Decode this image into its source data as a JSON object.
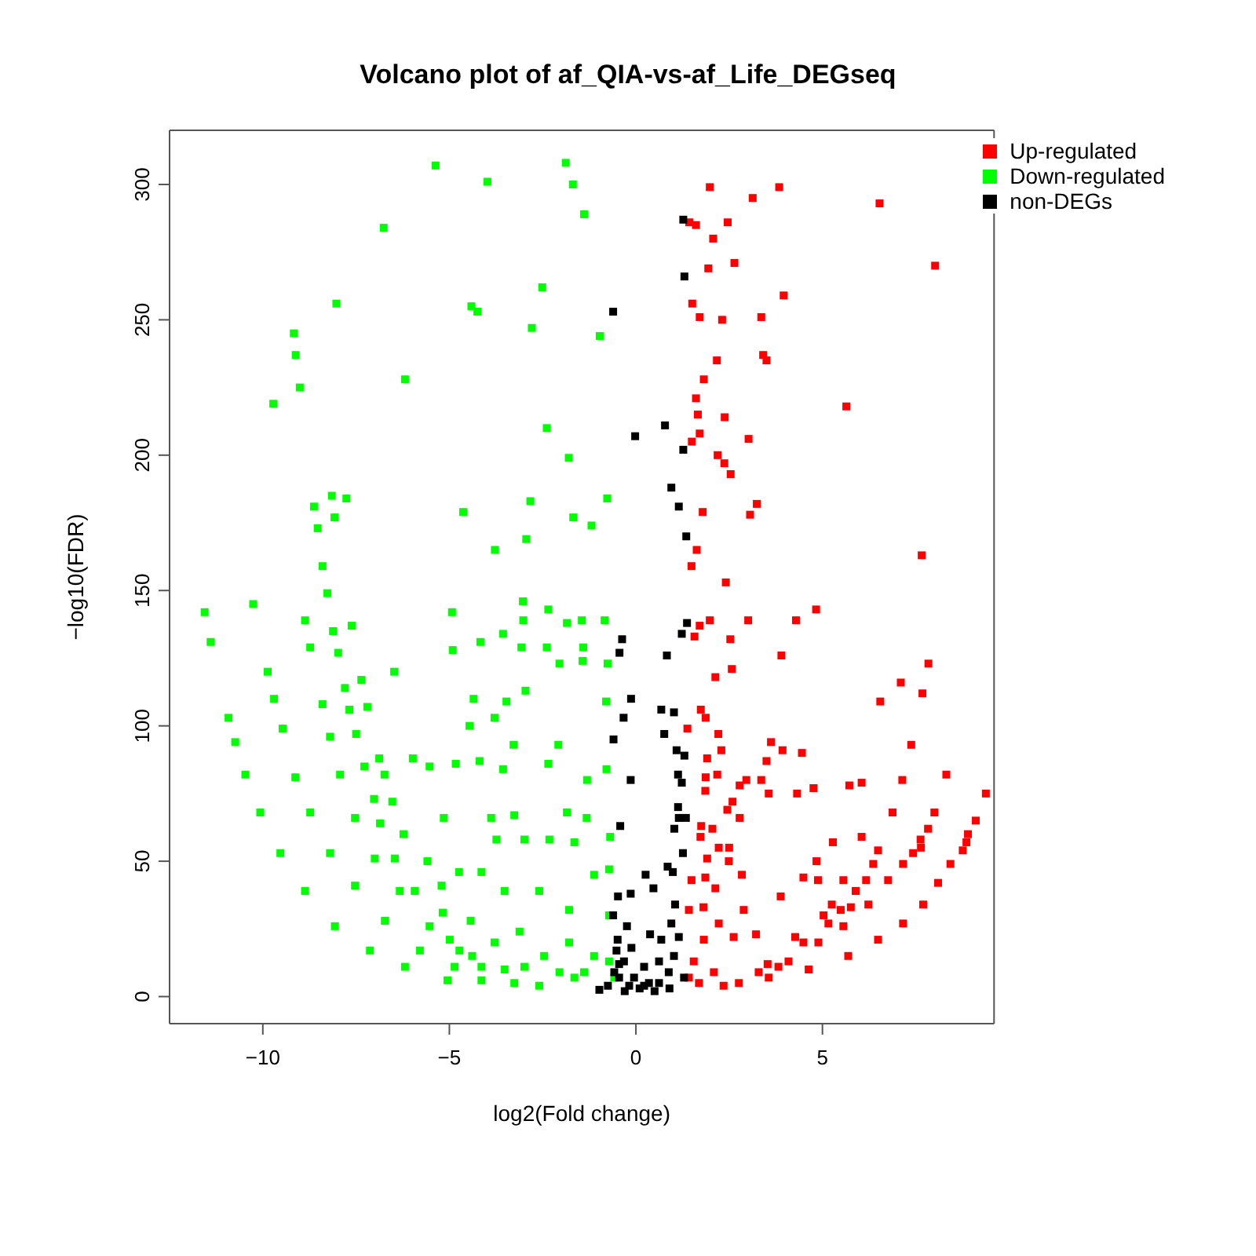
{
  "chart_data": {
    "type": "scatter",
    "title": "Volcano plot of af_QIA-vs-af_Life_DEGseq",
    "xlabel": "log2(Fold change)",
    "ylabel": "−log10(FDR)",
    "xlim": [
      -12.5,
      9.6
    ],
    "xticks": [
      -10,
      -5,
      0,
      5
    ],
    "ylim": [
      -10,
      320
    ],
    "yticks": [
      0,
      50,
      100,
      150,
      200,
      250,
      300
    ],
    "grid": false,
    "legend": "top right",
    "marker": "square",
    "series": [
      {
        "name": "Up-regulated",
        "color": "#ff0000",
        "x": [
          1.98,
          3.84,
          3.13,
          6.53,
          1.43,
          1.61,
          2.46,
          2.07,
          1.94,
          2.64,
          8.02,
          3.96,
          1.51,
          1.71,
          2.31,
          3.36,
          3.41,
          3.5,
          2.17,
          1.82,
          1.61,
          1.66,
          2.38,
          5.64,
          1.71,
          1.5,
          3.02,
          2.19,
          2.37,
          2.54,
          1.79,
          3.24,
          3.06,
          1.63,
          1.49,
          7.66,
          2.41,
          4.83,
          1.98,
          1.71,
          1.57,
          3.01,
          4.29,
          2.53,
          3.9,
          7.84,
          2.57,
          2.13,
          7.1,
          7.68,
          6.55,
          1.74,
          1.87,
          1.38,
          2.21,
          2.29,
          3.62,
          3.93,
          4.45,
          3.5,
          7.38,
          1.91,
          2.18,
          1.87,
          2.96,
          3.36,
          2.78,
          3.56,
          4.32,
          4.76,
          5.72,
          6.05,
          7.14,
          8.32,
          9.38,
          1.86,
          2.59,
          2.45,
          2.78,
          6.88,
          8.0,
          9.11,
          1.75,
          2.05,
          1.73,
          2.22,
          2.5,
          5.28,
          6.05,
          7.83,
          8.86,
          1.91,
          2.49,
          2.84,
          4.84,
          6.49,
          7.64,
          8.76,
          4.49,
          4.88,
          5.56,
          6.17,
          1.49,
          1.86,
          2.13,
          3.88,
          5.25,
          5.76,
          1.42,
          1.81,
          2.89,
          5.03,
          2.22,
          3.22,
          4.27,
          1.82,
          2.62,
          3.53,
          1.55,
          2.09,
          1.69,
          2.35,
          1.42,
          2.76,
          3.56,
          4.63,
          5.69,
          6.49,
          7.16,
          7.7,
          8.1,
          8.43,
          8.9,
          3.29,
          4.09,
          4.89,
          5.56,
          6.23,
          6.76,
          7.16,
          7.43,
          7.63,
          3.82,
          4.49,
          5.16,
          5.49,
          5.89,
          6.36
        ],
        "values": [
          299,
          299,
          295,
          293,
          286,
          285,
          286,
          280,
          269,
          271,
          270,
          259,
          256,
          251,
          250,
          251,
          237,
          235,
          235,
          228,
          221,
          215,
          214,
          218,
          208,
          205,
          206,
          200,
          197,
          193,
          179,
          182,
          178,
          165,
          159,
          163,
          153,
          143,
          139,
          137,
          133,
          139,
          139,
          132,
          126,
          123,
          121,
          118,
          116,
          112,
          109,
          106,
          103,
          99,
          97,
          91,
          94,
          91,
          90,
          87,
          93,
          88,
          82,
          81,
          80,
          80,
          78,
          75,
          75,
          77,
          78,
          79,
          80,
          82,
          75,
          76,
          72,
          69,
          66,
          68,
          68,
          65,
          63,
          62,
          59,
          55,
          55,
          57,
          59,
          62,
          57,
          51,
          50,
          45,
          50,
          54,
          55,
          54,
          44,
          43,
          43,
          43,
          43,
          44,
          40,
          37,
          34,
          33,
          32,
          33,
          32,
          30,
          27,
          23,
          22,
          21,
          22,
          12,
          13,
          9,
          5,
          4,
          7,
          5,
          7,
          10,
          15,
          21,
          27,
          34,
          42,
          49,
          60,
          9,
          13,
          20,
          26,
          34,
          43,
          49,
          53,
          58,
          11,
          20,
          27,
          32,
          39,
          49
        ]
      },
      {
        "name": "Down-regulated",
        "color": "#00ff00",
        "x": [
          -5.37,
          -3.98,
          -1.88,
          -1.69,
          -1.39,
          -6.76,
          -2.51,
          -8.03,
          -4.41,
          -4.25,
          -2.79,
          -0.97,
          -9.17,
          -9.12,
          -9.01,
          -9.72,
          -6.19,
          -2.39,
          -1.8,
          -8.63,
          -8.15,
          -7.76,
          -8.08,
          -8.53,
          -4.63,
          -2.83,
          -0.77,
          -1.68,
          -1.19,
          -2.94,
          -3.78,
          -8.4,
          -8.27,
          -11.56,
          -10.26,
          -11.4,
          -4.93,
          -3.03,
          -2.35,
          -3.02,
          -1.85,
          -1.45,
          -0.84,
          -3.56,
          -4.91,
          -4.17,
          -3.07,
          -2.39,
          -2.05,
          -1.41,
          -1.43,
          -0.76,
          -7.62,
          -8.12,
          -7.98,
          -6.48,
          -7.36,
          -7.8,
          -7.68,
          -7.2,
          -7.5,
          -4.35,
          -3.47,
          -4.46,
          -3.79,
          -2.96,
          -0.8,
          -10.92,
          -3.28,
          -2.08,
          -5.98,
          -6.88,
          -5.53,
          -4.83,
          -7.28,
          -6.74,
          -4.19,
          -3.56,
          -2.35,
          -0.79,
          -1.31,
          -7.02,
          -6.53,
          -5.15,
          -3.88,
          -3.26,
          -1.85,
          -1.32,
          -0.69,
          -6.23,
          -5.59,
          -5.21,
          -5.18,
          -4.43,
          -4.74,
          -4.14,
          -3.74,
          -2.99,
          -2.32,
          -1.65,
          -3.52,
          -2.59,
          -1.79,
          -1.12,
          -0.72,
          -0.72,
          -3.79,
          -3.12,
          -2.46,
          -1.79,
          -1.12,
          -0.72,
          -2.99,
          -2.05,
          -1.39,
          -3.26,
          -3.52,
          -2.59,
          -1.65,
          -0.58,
          -10.74,
          -10.47,
          -10.07,
          -9.53,
          -8.87,
          -8.07,
          -7.13,
          -6.19,
          -5.05,
          -9.87,
          -9.7,
          -9.47,
          -9.13,
          -8.73,
          -8.2,
          -7.53,
          -6.73,
          -5.79,
          -4.86,
          -4.14,
          -8.87,
          -8.73,
          -8.4,
          -8.2,
          -7.93,
          -7.53,
          -7.0,
          -6.33,
          -5.53,
          -4.73,
          -4.14,
          -6.86,
          -6.46,
          -5.93,
          -4.99,
          -4.39
        ],
        "values": [
          307,
          301,
          308,
          300,
          289,
          284,
          262,
          256,
          255,
          253,
          247,
          244,
          245,
          237,
          225,
          219,
          228,
          210,
          199,
          181,
          185,
          184,
          177,
          173,
          179,
          183,
          184,
          177,
          174,
          169,
          165,
          159,
          149,
          142,
          145,
          131,
          142,
          146,
          143,
          139,
          138,
          139,
          139,
          134,
          128,
          131,
          129,
          129,
          123,
          129,
          124,
          123,
          137,
          135,
          127,
          120,
          117,
          114,
          106,
          107,
          97,
          110,
          109,
          100,
          103,
          113,
          109,
          103,
          93,
          93,
          88,
          88,
          85,
          86,
          85,
          82,
          87,
          84,
          86,
          84,
          80,
          73,
          72,
          66,
          66,
          67,
          68,
          66,
          59,
          60,
          50,
          41,
          31,
          28,
          46,
          46,
          58,
          58,
          58,
          57,
          39,
          39,
          32,
          45,
          47,
          30,
          20,
          24,
          15,
          20,
          15,
          13,
          11,
          9,
          9,
          5,
          10,
          4,
          7,
          7,
          94,
          82,
          68,
          53,
          39,
          26,
          17,
          11,
          6,
          120,
          110,
          99,
          81,
          68,
          53,
          41,
          28,
          17,
          11,
          6,
          139,
          129,
          108,
          96,
          82,
          66,
          51,
          39,
          26,
          17,
          11,
          64,
          51,
          39,
          21,
          15
        ]
      },
      {
        "name": "non-DEGs",
        "color": "#000000",
        "x": [
          1.27,
          1.3,
          -0.61,
          0.78,
          -0.02,
          1.27,
          0.95,
          1.15,
          1.35,
          1.37,
          1.23,
          -0.37,
          -0.44,
          0.83,
          -0.13,
          -0.33,
          0.68,
          1.02,
          0.76,
          -0.6,
          1.09,
          1.3,
          -0.14,
          1.13,
          1.23,
          1.13,
          1.15,
          1.34,
          1.03,
          1.26,
          -0.42,
          0.26,
          0.85,
          0.99,
          0.47,
          -0.14,
          -0.48,
          1.05,
          -0.61,
          -0.24,
          0.95,
          0.38,
          0.68,
          -0.12,
          -0.49,
          1.15,
          -0.45,
          0.22,
          0.62,
          1.02,
          0.88,
          -0.58,
          -0.05,
          0.35,
          -0.18,
          1.29,
          -0.98,
          -0.52,
          -0.32,
          -0.45,
          0.22,
          0.62,
          -0.75,
          -0.3,
          0.1,
          0.5,
          0.9
        ],
        "values": [
          287,
          266,
          253,
          211,
          207,
          202,
          188,
          181,
          170,
          138,
          134,
          132,
          127,
          126,
          110,
          103,
          106,
          105,
          97,
          95,
          91,
          89,
          80,
          82,
          79,
          70,
          66,
          66,
          62,
          53,
          63,
          45,
          48,
          46,
          40,
          38,
          37,
          34,
          30,
          26,
          27,
          23,
          21,
          18,
          21,
          22,
          12,
          11,
          13,
          15,
          9,
          9,
          7,
          5,
          4,
          7,
          2.5,
          17,
          13,
          7,
          4,
          5,
          4,
          2,
          3,
          2,
          3
        ]
      }
    ]
  }
}
